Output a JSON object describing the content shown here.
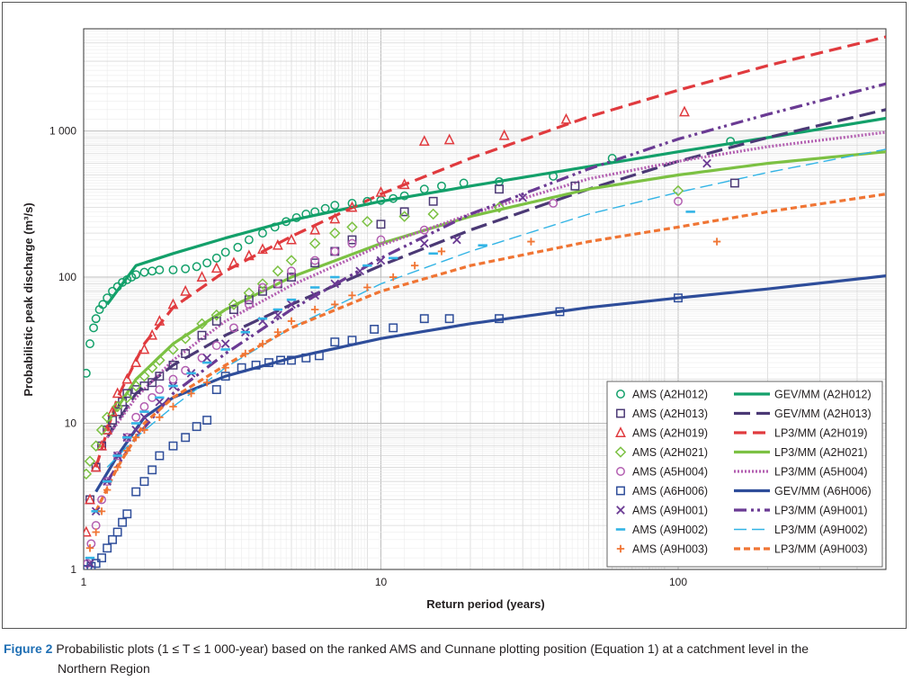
{
  "chart_data": {
    "type": "scatter",
    "xscale": "log",
    "yscale": "log",
    "xlim": [
      1,
      500
    ],
    "ylim": [
      1,
      5000
    ],
    "xlabel": "Return period (years)",
    "ylabel": "Probabilistic peak discharge (m³/s)",
    "x_ticks": [
      {
        "v": 1,
        "label": "1"
      },
      {
        "v": 10,
        "label": "10"
      },
      {
        "v": 100,
        "label": "100"
      }
    ],
    "y_ticks": [
      {
        "v": 1,
        "label": "1"
      },
      {
        "v": 10,
        "label": "10"
      },
      {
        "v": 100,
        "label": "100"
      },
      {
        "v": 1000,
        "label": "1 000"
      }
    ],
    "legend_position": "bottom-right",
    "points": [
      {
        "name": "AMS (A2H012)",
        "marker": "circle",
        "color": "#13a06a",
        "x": [
          1.02,
          1.05,
          1.08,
          1.1,
          1.13,
          1.16,
          1.2,
          1.25,
          1.3,
          1.35,
          1.4,
          1.45,
          1.5,
          1.6,
          1.7,
          1.8,
          2.0,
          2.2,
          2.4,
          2.6,
          2.8,
          3.0,
          3.3,
          3.6,
          4.0,
          4.4,
          4.8,
          5.2,
          5.6,
          6.0,
          6.5,
          7.0,
          8.0,
          9.0,
          10,
          11,
          12,
          14,
          16,
          19,
          25,
          38,
          60,
          150
        ],
        "y": [
          22,
          35,
          45,
          52,
          60,
          65,
          72,
          80,
          86,
          92,
          96,
          100,
          104,
          108,
          110,
          112,
          112,
          114,
          118,
          125,
          135,
          148,
          160,
          180,
          200,
          220,
          240,
          255,
          270,
          280,
          295,
          310,
          320,
          330,
          335,
          345,
          360,
          400,
          420,
          440,
          450,
          490,
          650,
          850
        ]
      },
      {
        "name": "AMS (A2H013)",
        "marker": "square",
        "color": "#4b3975",
        "x": [
          1.05,
          1.1,
          1.15,
          1.2,
          1.25,
          1.3,
          1.35,
          1.4,
          1.5,
          1.6,
          1.7,
          1.8,
          2.0,
          2.2,
          2.5,
          2.8,
          3.2,
          3.6,
          4.0,
          4.5,
          5.0,
          6.0,
          7.0,
          8.0,
          10,
          12,
          15,
          25,
          45,
          155
        ],
        "y": [
          3,
          5,
          7,
          9,
          10.5,
          12,
          14,
          16,
          17,
          18,
          19,
          21,
          25,
          30,
          40,
          50,
          60,
          70,
          80,
          90,
          100,
          125,
          150,
          180,
          230,
          280,
          330,
          400,
          420,
          440
        ]
      },
      {
        "name": "AMS (A2H019)",
        "marker": "triangle",
        "color": "#e03a3e",
        "x": [
          1.02,
          1.05,
          1.1,
          1.15,
          1.2,
          1.25,
          1.3,
          1.4,
          1.5,
          1.6,
          1.7,
          1.8,
          2.0,
          2.2,
          2.5,
          2.8,
          3.2,
          3.6,
          4.0,
          4.5,
          5.0,
          6.0,
          7.0,
          8.0,
          10,
          12,
          14,
          17,
          26,
          42,
          105
        ],
        "y": [
          1.8,
          3,
          5,
          7,
          9,
          12,
          16,
          20,
          26,
          32,
          40,
          50,
          65,
          80,
          100,
          115,
          125,
          140,
          155,
          165,
          180,
          210,
          250,
          300,
          380,
          430,
          850,
          870,
          930,
          1200,
          1350
        ]
      },
      {
        "name": "AMS (A2H021)",
        "marker": "diamond",
        "color": "#7cc143",
        "x": [
          1.02,
          1.05,
          1.1,
          1.15,
          1.2,
          1.3,
          1.4,
          1.5,
          1.6,
          1.7,
          1.8,
          2.0,
          2.2,
          2.5,
          2.8,
          3.2,
          3.6,
          4.0,
          4.5,
          5.0,
          6.0,
          7.0,
          8.0,
          9.0,
          12,
          15,
          25,
          100
        ],
        "y": [
          4.5,
          5.5,
          7,
          9,
          11,
          13,
          15,
          18,
          21,
          24,
          27,
          32,
          38,
          48,
          55,
          65,
          78,
          90,
          110,
          130,
          170,
          200,
          220,
          240,
          260,
          270,
          300,
          390
        ]
      },
      {
        "name": "AMS (A5H004)",
        "marker": "circle",
        "color": "#b35fb1",
        "x": [
          1.03,
          1.06,
          1.1,
          1.15,
          1.2,
          1.3,
          1.4,
          1.5,
          1.6,
          1.7,
          1.8,
          2.0,
          2.2,
          2.5,
          2.8,
          3.2,
          3.6,
          4.0,
          4.5,
          5.0,
          6.0,
          7.0,
          8.0,
          10,
          14,
          38,
          100
        ],
        "y": [
          1.1,
          1.5,
          2,
          3,
          4,
          6,
          8,
          11,
          13,
          15,
          17,
          20,
          23,
          28,
          34,
          45,
          65,
          85,
          90,
          110,
          130,
          150,
          170,
          180,
          210,
          320,
          330
        ]
      },
      {
        "name": "AMS (A6H006)",
        "marker": "square",
        "color": "#2e4d9a",
        "x": [
          1.03,
          1.06,
          1.1,
          1.15,
          1.2,
          1.25,
          1.3,
          1.35,
          1.4,
          1.5,
          1.6,
          1.7,
          1.8,
          2.0,
          2.2,
          2.4,
          2.6,
          2.8,
          3.0,
          3.4,
          3.8,
          4.2,
          4.6,
          5.0,
          5.6,
          6.2,
          7.0,
          8.0,
          9.5,
          11,
          14,
          17,
          25,
          40,
          100
        ],
        "y": [
          1,
          1.05,
          1.1,
          1.2,
          1.4,
          1.6,
          1.8,
          2.1,
          2.4,
          3.4,
          4,
          4.8,
          6,
          7,
          8,
          9.5,
          10.5,
          17,
          21,
          24,
          25,
          26,
          27,
          27,
          28,
          29,
          36,
          37,
          44,
          45,
          52,
          52,
          52,
          58,
          72
        ]
      },
      {
        "name": "AMS (A9H001)",
        "marker": "x",
        "color": "#6a3a93",
        "x": [
          1.05,
          1.1,
          1.2,
          1.3,
          1.4,
          1.5,
          1.6,
          1.8,
          2.0,
          2.3,
          2.6,
          3.0,
          3.5,
          4.0,
          4.5,
          5.0,
          6.0,
          7.0,
          8.5,
          10,
          14,
          18,
          30,
          125
        ],
        "y": [
          1.1,
          2.5,
          4,
          6,
          8,
          9,
          11,
          14,
          18,
          22,
          28,
          35,
          42,
          50,
          55,
          65,
          75,
          90,
          110,
          130,
          170,
          180,
          350,
          600
        ]
      },
      {
        "name": "AMS (A9H002)",
        "marker": "dash",
        "color": "#32b4e5",
        "x": [
          1.05,
          1.1,
          1.2,
          1.3,
          1.4,
          1.5,
          1.6,
          1.8,
          2.0,
          2.3,
          2.6,
          3.0,
          3.5,
          4.0,
          4.5,
          5.0,
          6.0,
          7.0,
          9.0,
          11,
          15,
          22,
          110
        ],
        "y": [
          1.2,
          2.5,
          4,
          6,
          8,
          10,
          12,
          15,
          18,
          22,
          26,
          32,
          42,
          52,
          60,
          70,
          85,
          100,
          120,
          135,
          145,
          165,
          280
        ]
      },
      {
        "name": "AMS (A9H003)",
        "marker": "plus",
        "color": "#f07534",
        "x": [
          1.05,
          1.1,
          1.15,
          1.2,
          1.3,
          1.4,
          1.5,
          1.6,
          1.8,
          2.0,
          2.3,
          2.6,
          3.0,
          3.5,
          4.0,
          4.5,
          5.0,
          6.0,
          7.0,
          8.0,
          9.0,
          11,
          13,
          16,
          32,
          135
        ],
        "y": [
          1.4,
          1.8,
          2.5,
          3.5,
          5,
          6.5,
          8,
          9,
          11,
          13,
          16,
          19,
          24,
          30,
          35,
          42,
          50,
          60,
          65,
          75,
          85,
          100,
          120,
          150,
          175,
          175
        ]
      }
    ],
    "curves": [
      {
        "name": "GEV/MM (A2H012)",
        "style": "solid",
        "color": "#13a06a",
        "x": [
          1.2,
          1.5,
          2,
          3,
          5,
          10,
          20,
          50,
          100,
          200,
          500
        ],
        "y": [
          65,
          120,
          145,
          185,
          245,
          330,
          420,
          570,
          720,
          900,
          1220
        ]
      },
      {
        "name": "GEV/MM (A2H013)",
        "style": "longdash",
        "color": "#4b3975",
        "x": [
          1.2,
          1.5,
          2,
          3,
          5,
          10,
          20,
          50,
          100,
          200,
          500
        ],
        "y": [
          8,
          16,
          25,
          40,
          65,
          120,
          210,
          400,
          620,
          900,
          1400
        ]
      },
      {
        "name": "LP3/MM (A2H019)",
        "style": "dash",
        "color": "#e03a3e",
        "x": [
          1.1,
          1.3,
          1.6,
          2,
          3,
          5,
          10,
          20,
          50,
          100,
          200,
          500
        ],
        "y": [
          5,
          15,
          35,
          62,
          110,
          190,
          370,
          650,
          1250,
          1900,
          2800,
          4400
        ]
      },
      {
        "name": "LP3/MM (A2H021)",
        "style": "solid",
        "color": "#7cc143",
        "x": [
          1.2,
          1.5,
          2,
          3,
          5,
          10,
          20,
          50,
          100,
          200,
          500
        ],
        "y": [
          10,
          20,
          35,
          60,
          100,
          170,
          260,
          400,
          500,
          600,
          720
        ]
      },
      {
        "name": "LP3/MM (A5H004)",
        "style": "dot",
        "color": "#b35fb1",
        "x": [
          1.2,
          1.5,
          2,
          3,
          5,
          10,
          20,
          50,
          100,
          200,
          500
        ],
        "y": [
          8,
          15,
          27,
          50,
          88,
          165,
          270,
          470,
          620,
          780,
          980
        ]
      },
      {
        "name": "GEV/MM (A6H006)",
        "style": "solid",
        "color": "#2e4d9a",
        "x": [
          1.1,
          1.3,
          1.6,
          2,
          3,
          5,
          10,
          20,
          50,
          100,
          200,
          500
        ],
        "y": [
          3.4,
          6,
          11,
          15,
          21,
          28,
          38,
          48,
          62,
          72,
          83,
          102
        ]
      },
      {
        "name": "LP3/MM (A9H001)",
        "style": "dashdotdot",
        "color": "#6a3a93",
        "x": [
          1.2,
          1.5,
          2,
          3,
          5,
          10,
          20,
          50,
          100,
          200,
          500
        ],
        "y": [
          4,
          8,
          16,
          30,
          60,
          135,
          270,
          550,
          880,
          1300,
          2100
        ]
      },
      {
        "name": "LP3/MM (A9H002)",
        "style": "thindash",
        "color": "#32b4e5",
        "x": [
          1.2,
          1.5,
          2,
          3,
          5,
          10,
          20,
          50,
          100,
          200,
          500
        ],
        "y": [
          5,
          8,
          13,
          24,
          45,
          90,
          150,
          270,
          380,
          520,
          750
        ]
      },
      {
        "name": "LP3/MM (A9H003)",
        "style": "shortdash",
        "color": "#f07534",
        "x": [
          1.1,
          1.3,
          1.6,
          2,
          3,
          5,
          10,
          20,
          50,
          100,
          200,
          500
        ],
        "y": [
          2.5,
          5,
          10,
          15,
          25,
          45,
          80,
          120,
          175,
          220,
          280,
          370
        ]
      }
    ]
  },
  "caption": {
    "label": "Figure 2",
    "text_line1": "Probabilistic plots (1 ≤ T ≤ 1 000-year) based on the ranked AMS and Cunnane plotting position (Equation 1) at a catchment level in the",
    "text_line2": "Northern Region"
  },
  "colors": {
    "grid": "#d0d0d0",
    "axis": "#333333",
    "caption_label": "#1f6fb4"
  }
}
